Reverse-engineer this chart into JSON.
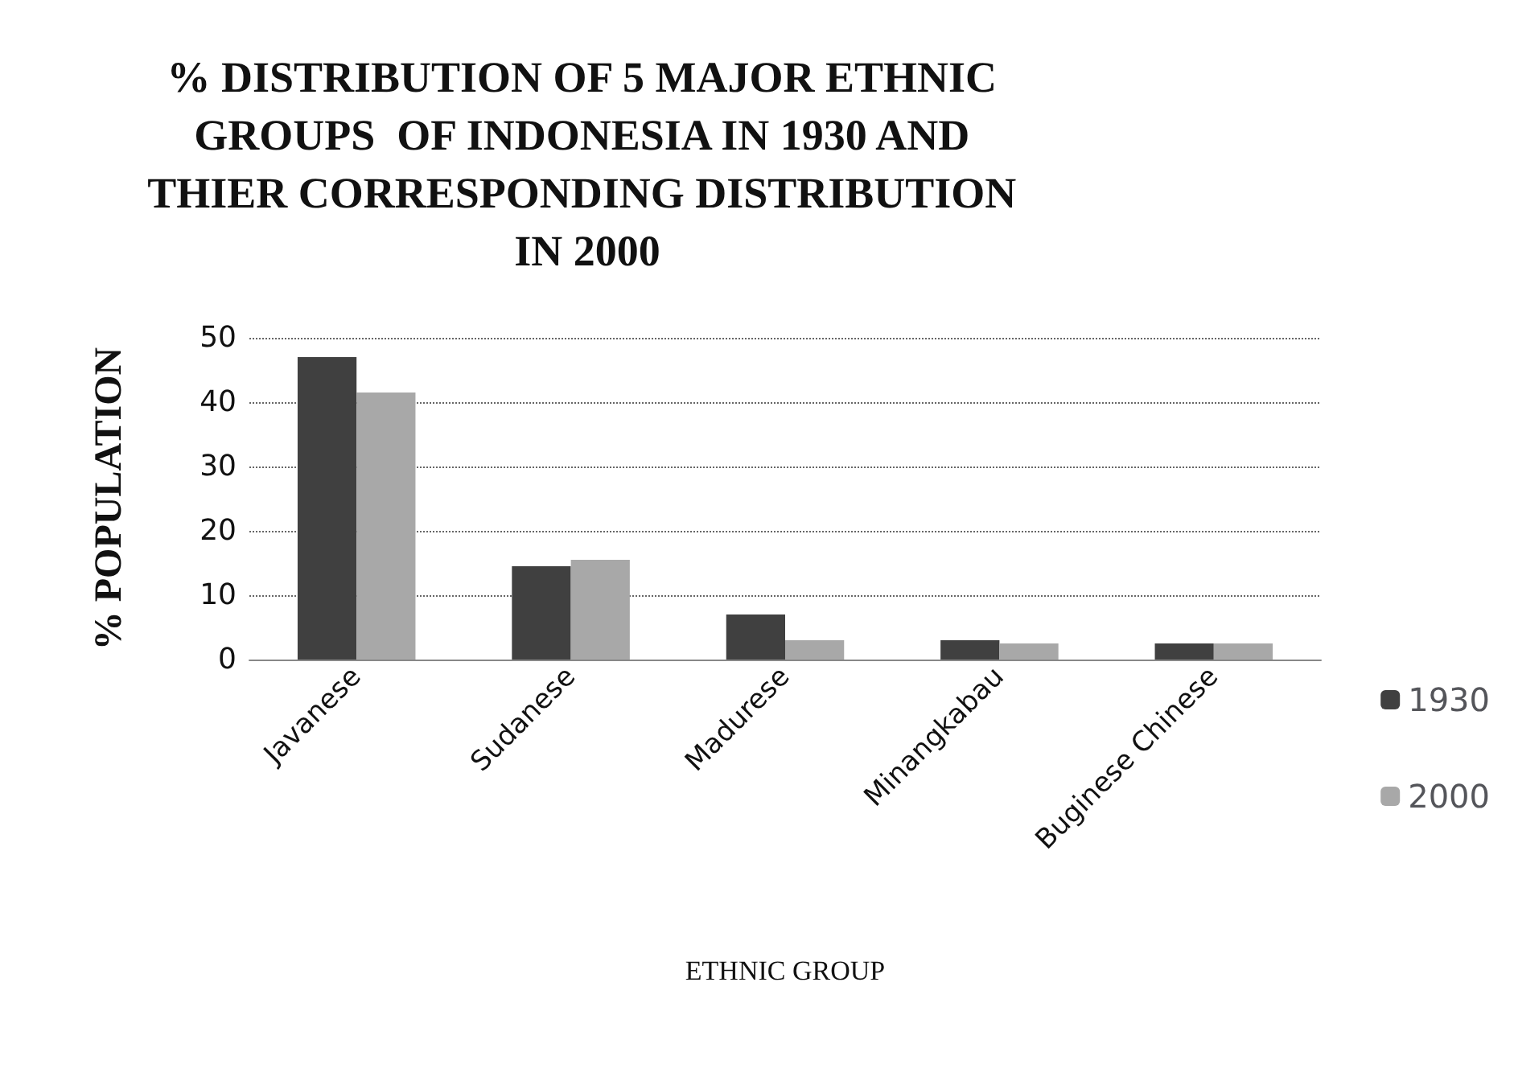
{
  "chart_data": {
    "type": "bar",
    "title": "% DISTRIBUTION OF 5 MAJOR ETHNIC GROUPS  OF INDONESIA IN 1930 AND THIER CORRESPONDING DISTRIBUTION IN 2000",
    "xlabel": "ETHNIC GROUP",
    "ylabel": "% POPULATION",
    "categories": [
      "Javanese",
      "Sudanese",
      "Madurese",
      "Minangkabau",
      "Buginese Chinese"
    ],
    "series": [
      {
        "name": "1930",
        "color": "#404040",
        "values": [
          47,
          14.5,
          7,
          3,
          2.5
        ]
      },
      {
        "name": "2000",
        "color": "#a8a8a8",
        "values": [
          41.5,
          15.5,
          3,
          2.5,
          2.5
        ]
      }
    ],
    "ylim": [
      0,
      50
    ],
    "yticks": [
      0,
      10,
      20,
      30,
      40,
      50
    ],
    "grid": "y",
    "legend": "right"
  }
}
